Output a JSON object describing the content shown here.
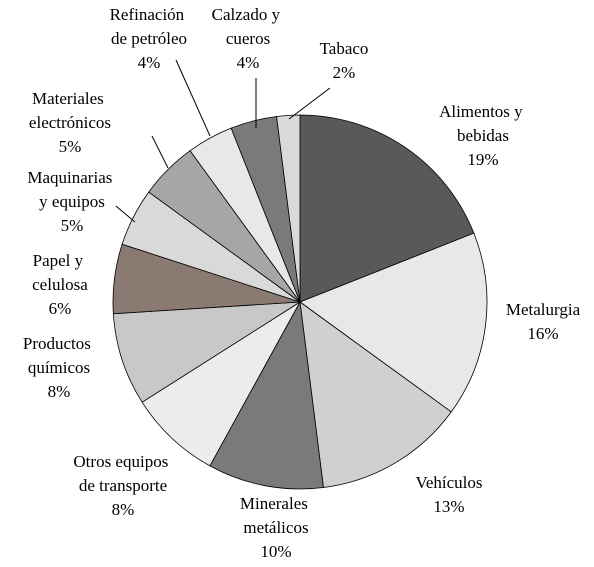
{
  "chart_data": {
    "type": "pie",
    "categories": [
      "Alimentos y bebidas",
      "Metalurgia",
      "Vehículos",
      "Minerales metálicos",
      "Otros equipos de transporte",
      "Productos químicos",
      "Papel y celulosa",
      "Maquinarias y equipos",
      "Materiales electrónicos",
      "Refinación de petróleo",
      "Calzado y cueros",
      "Tabaco"
    ],
    "values": [
      19,
      16,
      13,
      10,
      8,
      8,
      6,
      5,
      5,
      4,
      4,
      2
    ],
    "value_labels": [
      "19%",
      "16%",
      "13%",
      "10%",
      "8%",
      "8%",
      "6%",
      "5%",
      "5%",
      "4%",
      "4%",
      "2%"
    ],
    "colors": [
      "#595959",
      "#e8e8e8",
      "#d0d0d0",
      "#7a7a7a",
      "#ececec",
      "#c8c8c8",
      "#8a7a72",
      "#d9d9d9",
      "#a6a6a6",
      "#e8e8e8",
      "#7a7a7a",
      "#d9d9d9"
    ]
  }
}
